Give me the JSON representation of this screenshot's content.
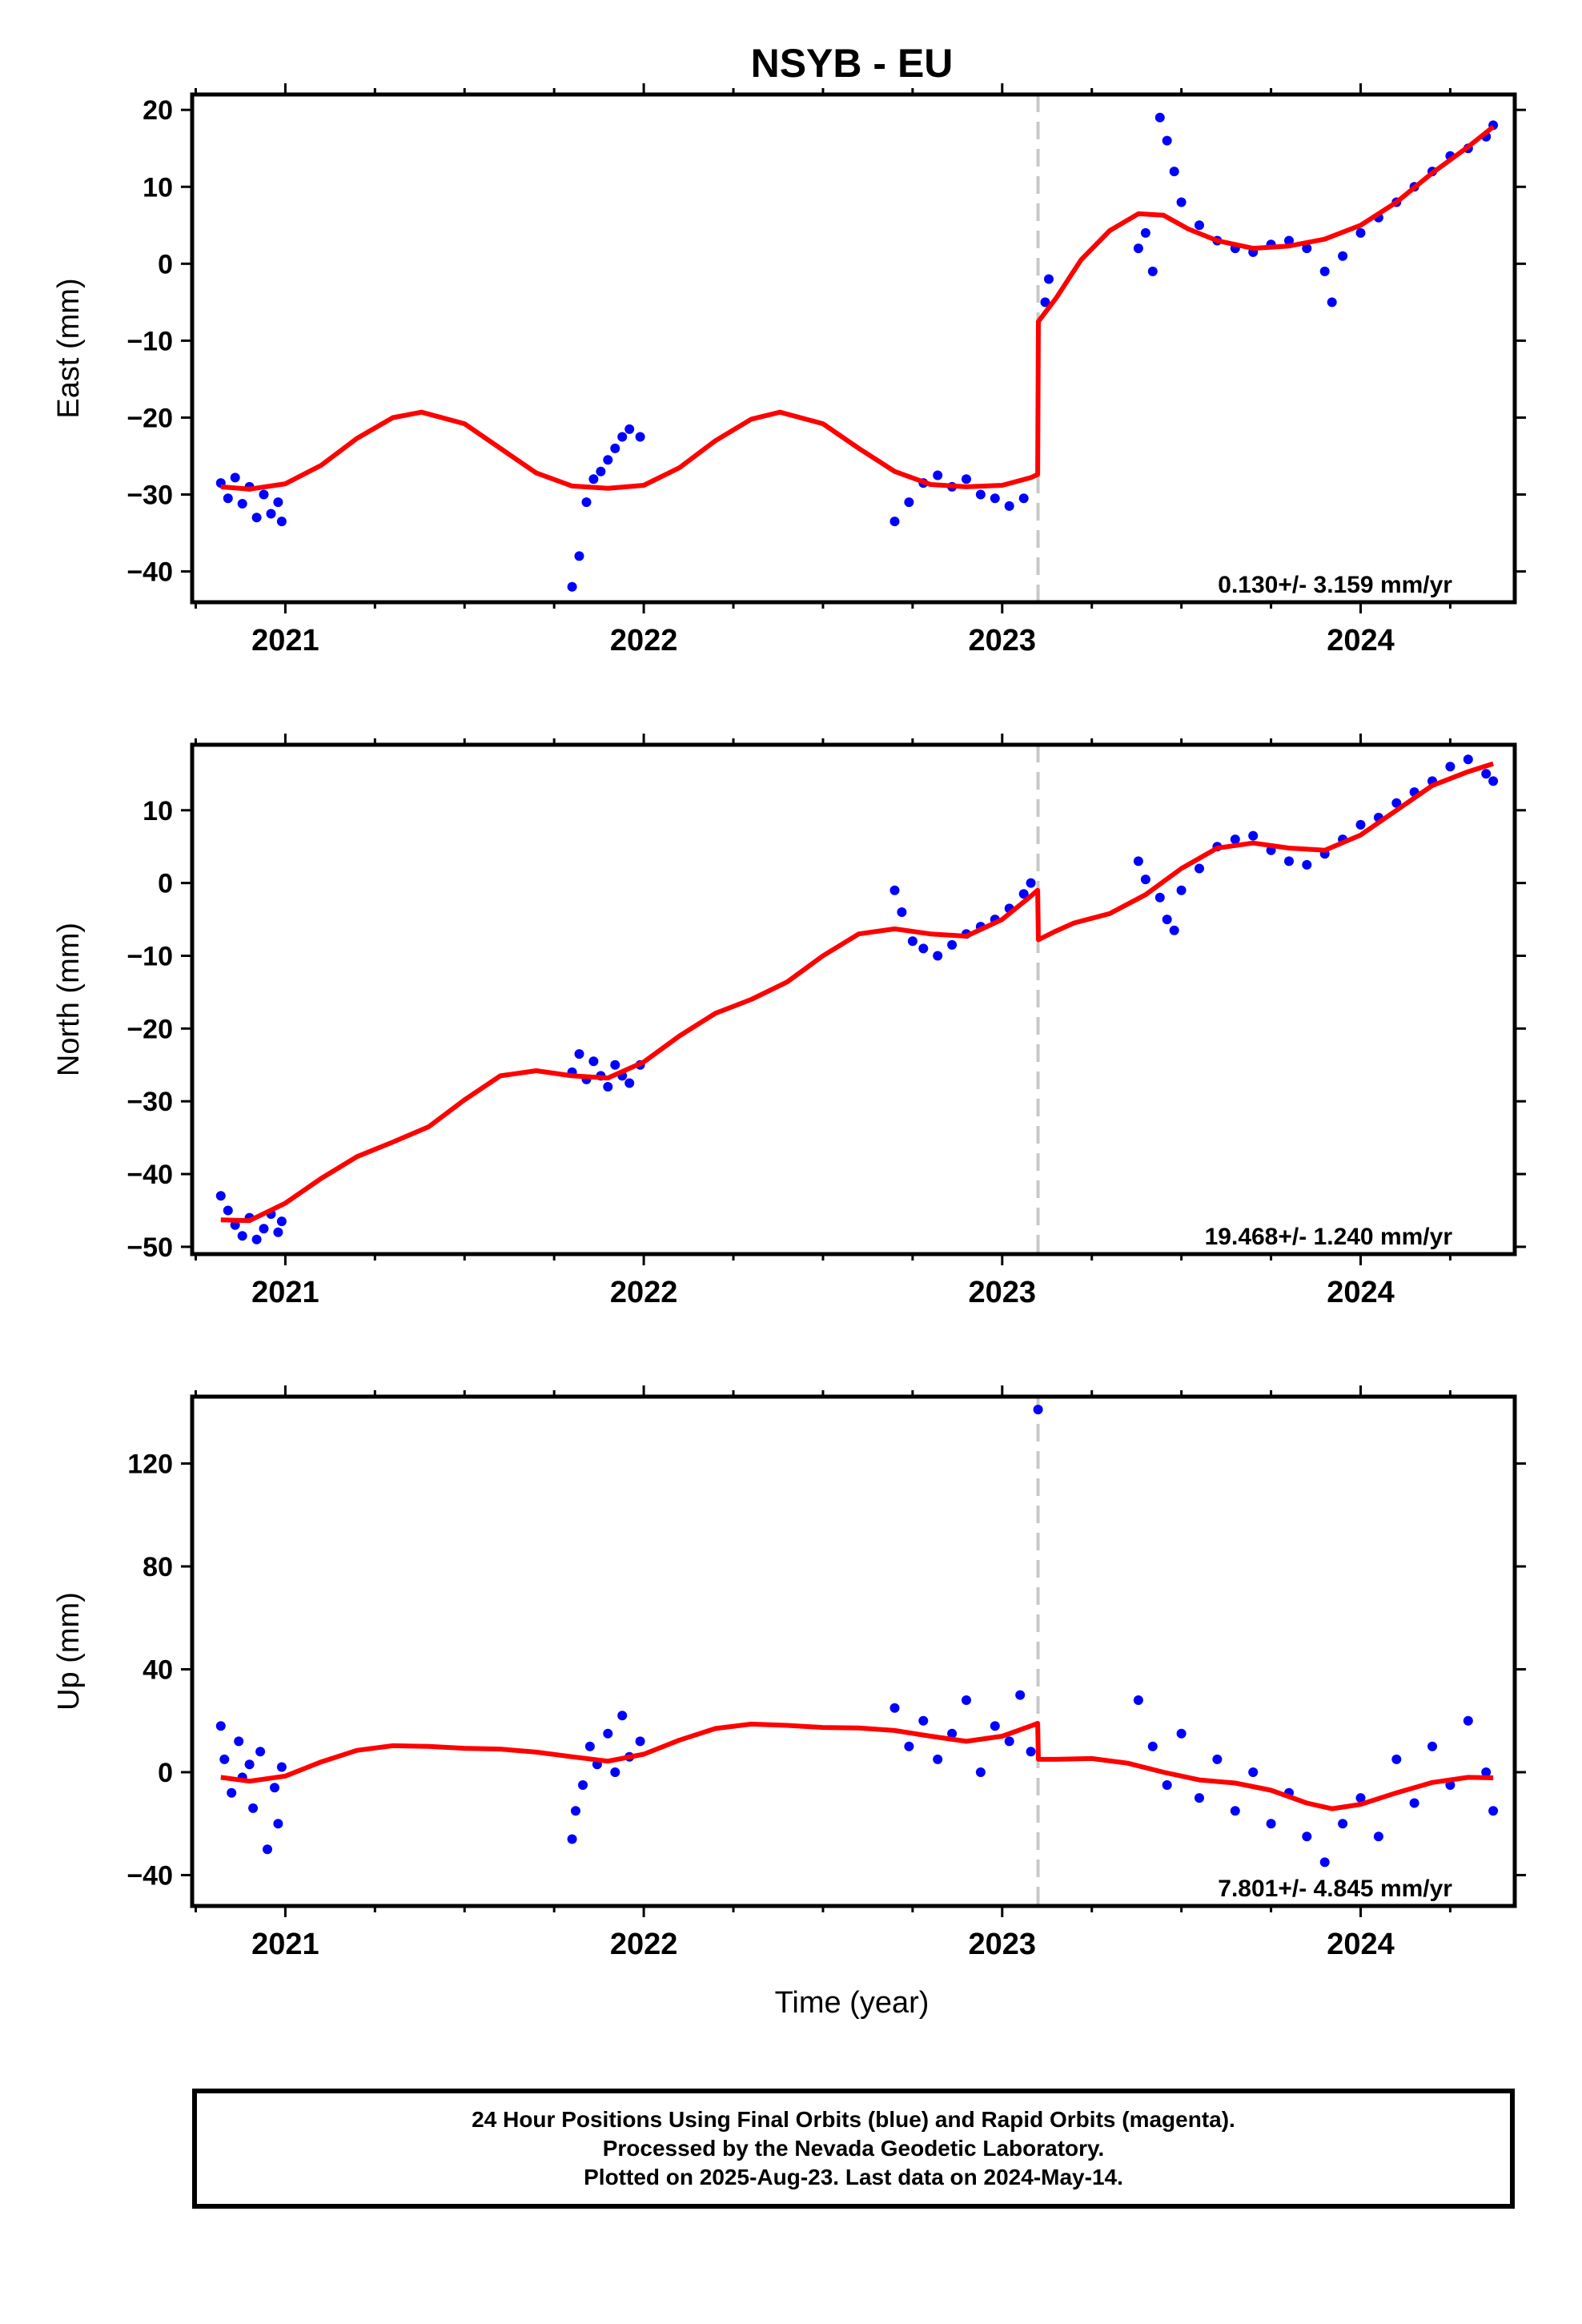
{
  "colors": {
    "series": "#0000ff",
    "model": "#ff0000",
    "offset": "#c8c8c8",
    "axes": "#000000"
  },
  "chart_data": {
    "type": "scatter",
    "title": "NSYB - EU",
    "xlabel": "Time (year)",
    "xlim": [
      2020.74,
      2024.43
    ],
    "xticks": [
      "2021",
      "2022",
      "2023",
      "2024"
    ],
    "offset_epoch": 2023.1,
    "panels": [
      {
        "id": "east",
        "ylabel": "East (mm)",
        "ylim": [
          -44,
          22
        ],
        "yticks": [
          "20",
          "10",
          "0",
          "−10",
          "−20",
          "−30",
          "−40"
        ],
        "rate": "0.130+/- 3.159 mm/yr",
        "obs": [
          [
            2020.82,
            -28.5
          ],
          [
            2020.84,
            -30.5
          ],
          [
            2020.86,
            -27.8
          ],
          [
            2020.88,
            -31.2
          ],
          [
            2020.9,
            -29.0
          ],
          [
            2020.92,
            -33.0
          ],
          [
            2020.94,
            -30.0
          ],
          [
            2020.96,
            -32.5
          ],
          [
            2020.98,
            -31.0
          ],
          [
            2020.99,
            -33.5
          ],
          [
            2021.8,
            -42.0
          ],
          [
            2021.82,
            -38.0
          ],
          [
            2021.84,
            -31.0
          ],
          [
            2021.86,
            -28.0
          ],
          [
            2021.88,
            -27.0
          ],
          [
            2021.9,
            -25.5
          ],
          [
            2021.92,
            -24.0
          ],
          [
            2021.94,
            -22.5
          ],
          [
            2021.96,
            -21.5
          ],
          [
            2021.99,
            -22.5
          ],
          [
            2022.7,
            -33.5
          ],
          [
            2022.74,
            -31.0
          ],
          [
            2022.78,
            -28.5
          ],
          [
            2022.82,
            -27.5
          ],
          [
            2022.86,
            -29.0
          ],
          [
            2022.9,
            -28.0
          ],
          [
            2022.94,
            -30.0
          ],
          [
            2022.98,
            -30.5
          ],
          [
            2023.02,
            -31.5
          ],
          [
            2023.06,
            -30.5
          ],
          [
            2023.12,
            -5.0
          ],
          [
            2023.13,
            -2.0
          ],
          [
            2023.38,
            2.0
          ],
          [
            2023.4,
            4.0
          ],
          [
            2023.42,
            -1.0
          ],
          [
            2023.44,
            19.0
          ],
          [
            2023.46,
            16.0
          ],
          [
            2023.48,
            12.0
          ],
          [
            2023.5,
            8.0
          ],
          [
            2023.55,
            5.0
          ],
          [
            2023.6,
            3.0
          ],
          [
            2023.65,
            2.0
          ],
          [
            2023.7,
            1.5
          ],
          [
            2023.75,
            2.5
          ],
          [
            2023.8,
            3.0
          ],
          [
            2023.85,
            2.0
          ],
          [
            2023.9,
            -1.0
          ],
          [
            2023.92,
            -5.0
          ],
          [
            2023.95,
            1.0
          ],
          [
            2024.0,
            4.0
          ],
          [
            2024.05,
            6.0
          ],
          [
            2024.1,
            8.0
          ],
          [
            2024.15,
            10.0
          ],
          [
            2024.2,
            12.0
          ],
          [
            2024.25,
            14.0
          ],
          [
            2024.3,
            15.0
          ],
          [
            2024.35,
            16.5
          ],
          [
            2024.37,
            18.0
          ]
        ],
        "model": [
          [
            2020.82,
            -29.0
          ],
          [
            2020.9,
            -29.3
          ],
          [
            2021.0,
            -28.6
          ],
          [
            2021.1,
            -26.2
          ],
          [
            2021.2,
            -22.7
          ],
          [
            2021.3,
            -20.0
          ],
          [
            2021.38,
            -19.3
          ],
          [
            2021.5,
            -20.8
          ],
          [
            2021.6,
            -24.0
          ],
          [
            2021.7,
            -27.2
          ],
          [
            2021.8,
            -28.9
          ],
          [
            2021.9,
            -29.2
          ],
          [
            2022.0,
            -28.8
          ],
          [
            2022.1,
            -26.5
          ],
          [
            2022.2,
            -23.0
          ],
          [
            2022.3,
            -20.2
          ],
          [
            2022.38,
            -19.3
          ],
          [
            2022.5,
            -20.8
          ],
          [
            2022.6,
            -24.0
          ],
          [
            2022.7,
            -27.0
          ],
          [
            2022.8,
            -28.7
          ],
          [
            2022.9,
            -29.0
          ],
          [
            2023.0,
            -28.8
          ],
          [
            2023.08,
            -27.8
          ],
          [
            2023.099,
            -27.4
          ],
          [
            2023.101,
            -7.5
          ],
          [
            2023.15,
            -4.5
          ],
          [
            2023.22,
            0.5
          ],
          [
            2023.3,
            4.3
          ],
          [
            2023.38,
            6.5
          ],
          [
            2023.45,
            6.3
          ],
          [
            2023.52,
            4.5
          ],
          [
            2023.6,
            3.0
          ],
          [
            2023.7,
            2.0
          ],
          [
            2023.8,
            2.3
          ],
          [
            2023.9,
            3.2
          ],
          [
            2024.0,
            5.0
          ],
          [
            2024.1,
            8.0
          ],
          [
            2024.2,
            11.8
          ],
          [
            2024.3,
            15.2
          ],
          [
            2024.37,
            17.8
          ]
        ]
      },
      {
        "id": "north",
        "ylabel": "North (mm)",
        "ylim": [
          -51,
          19
        ],
        "yticks": [
          "10",
          "0",
          "−10",
          "−20",
          "−30",
          "−40",
          "−50"
        ],
        "rate": "19.468+/- 1.240 mm/yr",
        "obs": [
          [
            2020.82,
            -43.0
          ],
          [
            2020.84,
            -45.0
          ],
          [
            2020.86,
            -47.0
          ],
          [
            2020.88,
            -48.5
          ],
          [
            2020.9,
            -46.0
          ],
          [
            2020.92,
            -49.0
          ],
          [
            2020.94,
            -47.5
          ],
          [
            2020.96,
            -45.5
          ],
          [
            2020.98,
            -48.0
          ],
          [
            2020.99,
            -46.5
          ],
          [
            2021.8,
            -26.0
          ],
          [
            2021.82,
            -23.5
          ],
          [
            2021.84,
            -27.0
          ],
          [
            2021.86,
            -24.5
          ],
          [
            2021.88,
            -26.5
          ],
          [
            2021.9,
            -28.0
          ],
          [
            2021.92,
            -25.0
          ],
          [
            2021.94,
            -26.5
          ],
          [
            2021.96,
            -27.5
          ],
          [
            2021.99,
            -25.0
          ],
          [
            2022.7,
            -1.0
          ],
          [
            2022.72,
            -4.0
          ],
          [
            2022.75,
            -8.0
          ],
          [
            2022.78,
            -9.0
          ],
          [
            2022.82,
            -10.0
          ],
          [
            2022.86,
            -8.5
          ],
          [
            2022.9,
            -7.0
          ],
          [
            2022.94,
            -6.0
          ],
          [
            2022.98,
            -5.0
          ],
          [
            2023.02,
            -3.5
          ],
          [
            2023.06,
            -1.5
          ],
          [
            2023.08,
            0.0
          ],
          [
            2023.38,
            3.0
          ],
          [
            2023.4,
            0.5
          ],
          [
            2023.44,
            -2.0
          ],
          [
            2023.46,
            -5.0
          ],
          [
            2023.48,
            -6.5
          ],
          [
            2023.5,
            -1.0
          ],
          [
            2023.55,
            2.0
          ],
          [
            2023.6,
            5.0
          ],
          [
            2023.65,
            6.0
          ],
          [
            2023.7,
            6.5
          ],
          [
            2023.75,
            4.5
          ],
          [
            2023.8,
            3.0
          ],
          [
            2023.85,
            2.5
          ],
          [
            2023.9,
            4.0
          ],
          [
            2023.95,
            6.0
          ],
          [
            2024.0,
            8.0
          ],
          [
            2024.05,
            9.0
          ],
          [
            2024.1,
            11.0
          ],
          [
            2024.15,
            12.5
          ],
          [
            2024.2,
            14.0
          ],
          [
            2024.25,
            16.0
          ],
          [
            2024.3,
            17.0
          ],
          [
            2024.35,
            15.0
          ],
          [
            2024.37,
            14.0
          ]
        ],
        "model": [
          [
            2020.82,
            -46.3
          ],
          [
            2020.9,
            -46.4
          ],
          [
            2021.0,
            -44.0
          ],
          [
            2021.1,
            -40.6
          ],
          [
            2021.2,
            -37.6
          ],
          [
            2021.3,
            -35.6
          ],
          [
            2021.4,
            -33.5
          ],
          [
            2021.5,
            -29.8
          ],
          [
            2021.6,
            -26.5
          ],
          [
            2021.7,
            -25.8
          ],
          [
            2021.8,
            -26.5
          ],
          [
            2021.9,
            -26.8
          ],
          [
            2022.0,
            -24.6
          ],
          [
            2022.1,
            -21.0
          ],
          [
            2022.2,
            -17.9
          ],
          [
            2022.3,
            -16.0
          ],
          [
            2022.4,
            -13.6
          ],
          [
            2022.5,
            -10.0
          ],
          [
            2022.6,
            -7.0
          ],
          [
            2022.7,
            -6.3
          ],
          [
            2022.8,
            -7.0
          ],
          [
            2022.9,
            -7.3
          ],
          [
            2023.0,
            -5.0
          ],
          [
            2023.08,
            -1.8
          ],
          [
            2023.099,
            -1.0
          ],
          [
            2023.101,
            -7.8
          ],
          [
            2023.15,
            -6.6
          ],
          [
            2023.2,
            -5.5
          ],
          [
            2023.3,
            -4.2
          ],
          [
            2023.4,
            -1.6
          ],
          [
            2023.5,
            2.0
          ],
          [
            2023.6,
            4.8
          ],
          [
            2023.7,
            5.5
          ],
          [
            2023.8,
            4.8
          ],
          [
            2023.9,
            4.5
          ],
          [
            2024.0,
            6.6
          ],
          [
            2024.1,
            10.0
          ],
          [
            2024.2,
            13.4
          ],
          [
            2024.3,
            15.3
          ],
          [
            2024.37,
            16.4
          ]
        ]
      },
      {
        "id": "up",
        "ylabel": "Up (mm)",
        "ylim": [
          -52,
          146
        ],
        "yticks": [
          "120",
          "80",
          "40",
          "0",
          "−40"
        ],
        "rate": "7.801+/- 4.845 mm/yr",
        "obs": [
          [
            2020.82,
            18.0
          ],
          [
            2020.83,
            5.0
          ],
          [
            2020.85,
            -8.0
          ],
          [
            2020.87,
            12.0
          ],
          [
            2020.88,
            -2.0
          ],
          [
            2020.9,
            3.0
          ],
          [
            2020.91,
            -14.0
          ],
          [
            2020.93,
            8.0
          ],
          [
            2020.95,
            -30.0
          ],
          [
            2020.97,
            -6.0
          ],
          [
            2020.98,
            -20.0
          ],
          [
            2020.99,
            2.0
          ],
          [
            2021.8,
            -26.0
          ],
          [
            2021.81,
            -15.0
          ],
          [
            2021.83,
            -5.0
          ],
          [
            2021.85,
            10.0
          ],
          [
            2021.87,
            3.0
          ],
          [
            2021.9,
            15.0
          ],
          [
            2021.92,
            0.0
          ],
          [
            2021.94,
            22.0
          ],
          [
            2021.96,
            6.0
          ],
          [
            2021.99,
            12.0
          ],
          [
            2022.7,
            25.0
          ],
          [
            2022.74,
            10.0
          ],
          [
            2022.78,
            20.0
          ],
          [
            2022.82,
            5.0
          ],
          [
            2022.86,
            15.0
          ],
          [
            2022.9,
            28.0
          ],
          [
            2022.94,
            0.0
          ],
          [
            2022.98,
            18.0
          ],
          [
            2023.02,
            12.0
          ],
          [
            2023.05,
            30.0
          ],
          [
            2023.08,
            8.0
          ],
          [
            2023.1,
            141.0
          ],
          [
            2023.38,
            28.0
          ],
          [
            2023.42,
            10.0
          ],
          [
            2023.46,
            -5.0
          ],
          [
            2023.5,
            15.0
          ],
          [
            2023.55,
            -10.0
          ],
          [
            2023.6,
            5.0
          ],
          [
            2023.65,
            -15.0
          ],
          [
            2023.7,
            0.0
          ],
          [
            2023.75,
            -20.0
          ],
          [
            2023.8,
            -8.0
          ],
          [
            2023.85,
            -25.0
          ],
          [
            2023.9,
            -35.0
          ],
          [
            2023.95,
            -20.0
          ],
          [
            2024.0,
            -10.0
          ],
          [
            2024.05,
            -25.0
          ],
          [
            2024.1,
            5.0
          ],
          [
            2024.15,
            -12.0
          ],
          [
            2024.2,
            10.0
          ],
          [
            2024.25,
            -5.0
          ],
          [
            2024.3,
            20.0
          ],
          [
            2024.35,
            0.0
          ],
          [
            2024.37,
            -15.0
          ]
        ],
        "model": [
          [
            2020.82,
            -2.0
          ],
          [
            2020.9,
            -3.5
          ],
          [
            2021.0,
            -1.5
          ],
          [
            2021.1,
            4.0
          ],
          [
            2021.2,
            8.5
          ],
          [
            2021.3,
            10.3
          ],
          [
            2021.4,
            10.0
          ],
          [
            2021.5,
            9.3
          ],
          [
            2021.6,
            9.0
          ],
          [
            2021.7,
            7.8
          ],
          [
            2021.8,
            6.0
          ],
          [
            2021.9,
            4.3
          ],
          [
            2022.0,
            7.0
          ],
          [
            2022.1,
            12.5
          ],
          [
            2022.2,
            17.0
          ],
          [
            2022.3,
            18.7
          ],
          [
            2022.4,
            18.2
          ],
          [
            2022.5,
            17.4
          ],
          [
            2022.6,
            17.2
          ],
          [
            2022.7,
            16.2
          ],
          [
            2022.8,
            14.0
          ],
          [
            2022.9,
            12.0
          ],
          [
            2023.0,
            14.0
          ],
          [
            2023.08,
            18.0
          ],
          [
            2023.099,
            19.0
          ],
          [
            2023.101,
            5.0
          ],
          [
            2023.15,
            5.0
          ],
          [
            2023.25,
            5.3
          ],
          [
            2023.35,
            3.5
          ],
          [
            2023.45,
            0.0
          ],
          [
            2023.55,
            -3.0
          ],
          [
            2023.65,
            -4.2
          ],
          [
            2023.75,
            -7.0
          ],
          [
            2023.85,
            -12.0
          ],
          [
            2023.92,
            -14.2
          ],
          [
            2024.0,
            -12.5
          ],
          [
            2024.1,
            -8.0
          ],
          [
            2024.2,
            -4.0
          ],
          [
            2024.3,
            -2.0
          ],
          [
            2024.37,
            -2.2
          ]
        ]
      }
    ]
  },
  "footer": {
    "line1": "24 Hour Positions Using Final Orbits (blue) and Rapid Orbits (magenta).",
    "line2": "Processed by the Nevada Geodetic Laboratory.",
    "line3": "Plotted on 2025-Aug-23. Last data on 2024-May-14."
  }
}
